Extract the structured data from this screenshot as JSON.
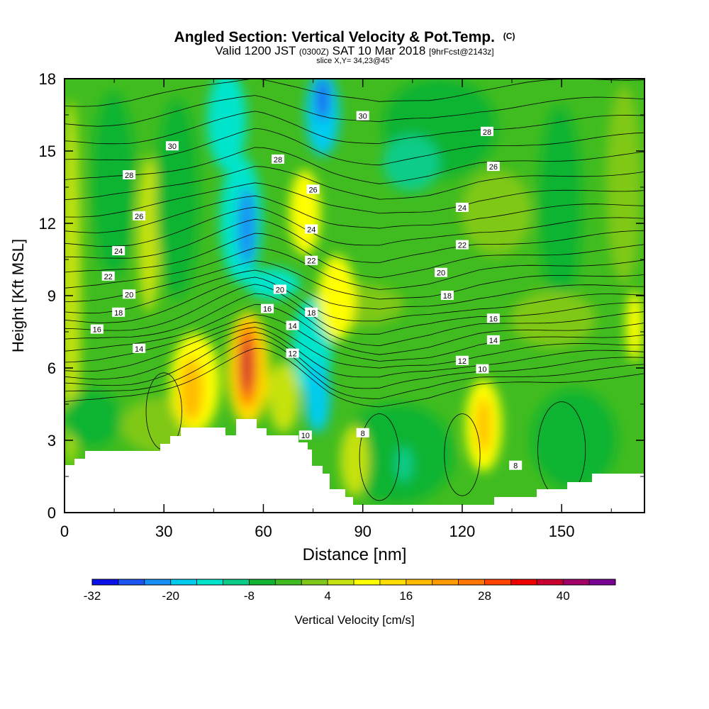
{
  "chart_data": {
    "type": "heatmap",
    "title": "Angled Section: Vertical Velocity & Pot.Temp.",
    "title_unit": "(C)",
    "subtitle_main": "Valid 1200 JST",
    "subtitle_utc": "(0300Z)",
    "subtitle_date": "SAT 10 Mar 2018",
    "subtitle_fcst": "[9hrFcst@2143z]",
    "subtitle_slice": "slice X,Y= 34,23@45°",
    "xlabel": "Distance [nm]",
    "ylabel": "Height [Kft MSL]",
    "xlim": [
      0,
      175
    ],
    "ylim": [
      0,
      18
    ],
    "x_ticks": [
      "0",
      "30",
      "60",
      "90",
      "120",
      "150"
    ],
    "y_ticks": [
      "0",
      "3",
      "6",
      "9",
      "12",
      "15",
      "18"
    ],
    "colorbar": {
      "label": "Vertical Velocity [cm/s]",
      "min": -32,
      "max": 48,
      "step": 4,
      "tick_labels": [
        "-32",
        "-20",
        "-8",
        "4",
        "16",
        "28",
        "40"
      ],
      "colors": [
        "#0a10e8",
        "#1a55f0",
        "#1690f5",
        "#00ccf0",
        "#00e4cc",
        "#0acc88",
        "#10b432",
        "#40bc20",
        "#80c818",
        "#c6e210",
        "#ffff00",
        "#ffdd00",
        "#ffbb00",
        "#ff9a00",
        "#ff7600",
        "#ff4400",
        "#ee0000",
        "#c80030",
        "#a00068",
        "#7a0094"
      ]
    },
    "contour_labels": [
      {
        "text": "30",
        "x": 32.5,
        "y": 15.2
      },
      {
        "text": "28",
        "x": 19.5,
        "y": 14.0
      },
      {
        "text": "26",
        "x": 22.5,
        "y": 12.3
      },
      {
        "text": "24",
        "x": 16.3,
        "y": 10.85
      },
      {
        "text": "22",
        "x": 13.2,
        "y": 9.8
      },
      {
        "text": "20",
        "x": 19.5,
        "y": 9.05
      },
      {
        "text": "18",
        "x": 16.3,
        "y": 8.3
      },
      {
        "text": "16",
        "x": 9.8,
        "y": 7.6
      },
      {
        "text": "14",
        "x": 22.5,
        "y": 6.8
      },
      {
        "text": "28",
        "x": 64.4,
        "y": 14.65
      },
      {
        "text": "26",
        "x": 75.0,
        "y": 13.4
      },
      {
        "text": "24",
        "x": 74.5,
        "y": 11.75
      },
      {
        "text": "22",
        "x": 74.5,
        "y": 10.45
      },
      {
        "text": "20",
        "x": 65.0,
        "y": 9.25
      },
      {
        "text": "16",
        "x": 61.2,
        "y": 8.45
      },
      {
        "text": "18",
        "x": 74.5,
        "y": 8.3
      },
      {
        "text": "14",
        "x": 68.8,
        "y": 7.75
      },
      {
        "text": "12",
        "x": 68.8,
        "y": 6.6
      },
      {
        "text": "30",
        "x": 90.0,
        "y": 16.45
      },
      {
        "text": "28",
        "x": 127.5,
        "y": 15.8
      },
      {
        "text": "26",
        "x": 129.4,
        "y": 14.35
      },
      {
        "text": "24",
        "x": 120.0,
        "y": 12.65
      },
      {
        "text": "22",
        "x": 120.0,
        "y": 11.1
      },
      {
        "text": "20",
        "x": 113.6,
        "y": 9.95
      },
      {
        "text": "18",
        "x": 115.5,
        "y": 9.0
      },
      {
        "text": "16",
        "x": 129.4,
        "y": 8.05
      },
      {
        "text": "14",
        "x": 129.4,
        "y": 7.15
      },
      {
        "text": "12",
        "x": 120.0,
        "y": 6.3
      },
      {
        "text": "10",
        "x": 126.1,
        "y": 5.95
      },
      {
        "text": "10",
        "x": 72.7,
        "y": 3.2
      },
      {
        "text": "8",
        "x": 90.0,
        "y": 3.3
      },
      {
        "text": "8",
        "x": 136.1,
        "y": 1.95
      }
    ]
  }
}
